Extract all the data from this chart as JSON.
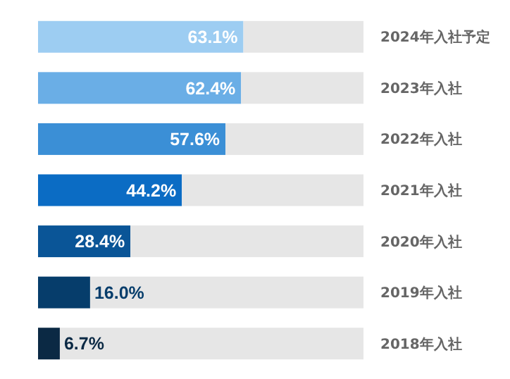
{
  "chart_data": {
    "type": "bar",
    "orientation": "horizontal",
    "stacked": true,
    "tick_labels": "y",
    "categories": [
      "2024年入社予定",
      "2023年入社",
      "2022年入社",
      "2021年入社",
      "2020年入社",
      "2019年入社",
      "2018年入社"
    ],
    "series": [
      {
        "colors": [
          "#9dcdf2",
          "#6aaee6",
          "#3b8fd6",
          "#0b6cc4",
          "#0a5597",
          "#063d6b",
          "#0b2944"
        ],
        "values": [
          63.1,
          62.4,
          57.6,
          44.2,
          28.4,
          16.0,
          6.7
        ],
        "value_labels": [
          "63.1%",
          "62.4%",
          "57.6%",
          "44.2%",
          "28.4%",
          "16.0%",
          "6.7%"
        ]
      },
      {
        "color": "#e6e6e6",
        "values": [
          36.9,
          37.6,
          42.4,
          55.8,
          71.6,
          84.0,
          93.3
        ]
      }
    ]
  }
}
